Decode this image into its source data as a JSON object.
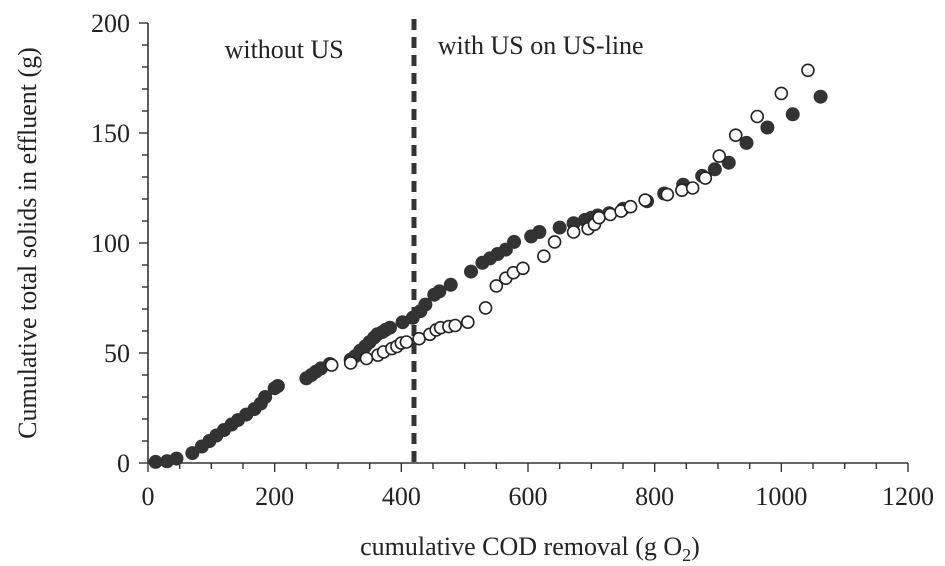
{
  "chart_data": {
    "type": "scatter",
    "title": "",
    "xlabel": "cumulative COD removal (g O",
    "xlabel_subscript": "2",
    "xlabel_suffix": ")",
    "ylabel": "Cumulative total solids in effluent (g)",
    "xlim": [
      0,
      1200
    ],
    "ylim": [
      0,
      200
    ],
    "xticks": [
      0,
      200,
      400,
      600,
      800,
      1000,
      1200
    ],
    "yticks": [
      0,
      50,
      100,
      150,
      200
    ],
    "xtick_labels": [
      "0",
      "200",
      "400",
      "600",
      "800",
      "1000",
      "1200"
    ],
    "ytick_labels": [
      "0",
      "50",
      "100",
      "150",
      "200"
    ],
    "grid": false,
    "legend": "none",
    "divider_x": 420,
    "annotations": [
      {
        "text": "without US",
        "x": 215,
        "y": 184
      },
      {
        "text": "with US on US-line",
        "x": 620,
        "y": 186
      }
    ],
    "series": [
      {
        "marker": "filled-circle",
        "color": "#333333",
        "points": [
          [
            12,
            0.5
          ],
          [
            30,
            0.8
          ],
          [
            45,
            2
          ],
          [
            70,
            4.5
          ],
          [
            85,
            7.5
          ],
          [
            97,
            10
          ],
          [
            108,
            12.5
          ],
          [
            120,
            15
          ],
          [
            132,
            17.5
          ],
          [
            142,
            19.5
          ],
          [
            155,
            22
          ],
          [
            168,
            24.5
          ],
          [
            178,
            27
          ],
          [
            185,
            30
          ],
          [
            200,
            34
          ],
          [
            205,
            35
          ],
          [
            250,
            38.5
          ],
          [
            258,
            40
          ],
          [
            265,
            41.5
          ],
          [
            273,
            43
          ],
          [
            287,
            45
          ],
          [
            320,
            47
          ],
          [
            327,
            48.5
          ],
          [
            335,
            51
          ],
          [
            343,
            53
          ],
          [
            350,
            55
          ],
          [
            357,
            57
          ],
          [
            362,
            58.5
          ],
          [
            370,
            59.5
          ],
          [
            375,
            60.5
          ],
          [
            382,
            61.5
          ],
          [
            402,
            64
          ],
          [
            418,
            66
          ],
          [
            430,
            69
          ],
          [
            438,
            72
          ],
          [
            452,
            76.5
          ],
          [
            460,
            78
          ],
          [
            478,
            81
          ],
          [
            510,
            87
          ],
          [
            528,
            91
          ],
          [
            540,
            93
          ],
          [
            552,
            95
          ],
          [
            565,
            97
          ],
          [
            578,
            100.5
          ],
          [
            605,
            103
          ],
          [
            618,
            105
          ],
          [
            650,
            107
          ],
          [
            672,
            109
          ],
          [
            690,
            110.5
          ],
          [
            700,
            111.5
          ],
          [
            710,
            112.5
          ],
          [
            728,
            113.5
          ],
          [
            750,
            115.5
          ],
          [
            788,
            119
          ],
          [
            815,
            122.5
          ],
          [
            845,
            126.5
          ],
          [
            875,
            130.5
          ],
          [
            895,
            133.5
          ],
          [
            917,
            136.5
          ],
          [
            945,
            145.5
          ],
          [
            978,
            152.5
          ],
          [
            1018,
            158.5
          ],
          [
            1062,
            166.5
          ]
        ]
      },
      {
        "marker": "open-circle",
        "color": "#222222",
        "points": [
          [
            290,
            44.5
          ],
          [
            320,
            45.5
          ],
          [
            345,
            47.5
          ],
          [
            363,
            49
          ],
          [
            372,
            50.5
          ],
          [
            385,
            52
          ],
          [
            393,
            53
          ],
          [
            400,
            54.5
          ],
          [
            408,
            55
          ],
          [
            428,
            56.5
          ],
          [
            445,
            58.5
          ],
          [
            455,
            60.5
          ],
          [
            462,
            61.5
          ],
          [
            475,
            62
          ],
          [
            485,
            62.5
          ],
          [
            505,
            64
          ],
          [
            533,
            70.5
          ],
          [
            550,
            80.5
          ],
          [
            565,
            84
          ],
          [
            577,
            86.5
          ],
          [
            592,
            88.5
          ],
          [
            625,
            94
          ],
          [
            642,
            100.5
          ],
          [
            672,
            105
          ],
          [
            695,
            106.5
          ],
          [
            705,
            108.5
          ],
          [
            712,
            111.5
          ],
          [
            730,
            113
          ],
          [
            747,
            114.5
          ],
          [
            762,
            116.5
          ],
          [
            785,
            119.5
          ],
          [
            820,
            122
          ],
          [
            843,
            124
          ],
          [
            860,
            125
          ],
          [
            880,
            129.5
          ],
          [
            902,
            139.5
          ],
          [
            928,
            149
          ],
          [
            962,
            157.5
          ],
          [
            1000,
            168
          ],
          [
            1042,
            178.5
          ]
        ]
      }
    ]
  }
}
